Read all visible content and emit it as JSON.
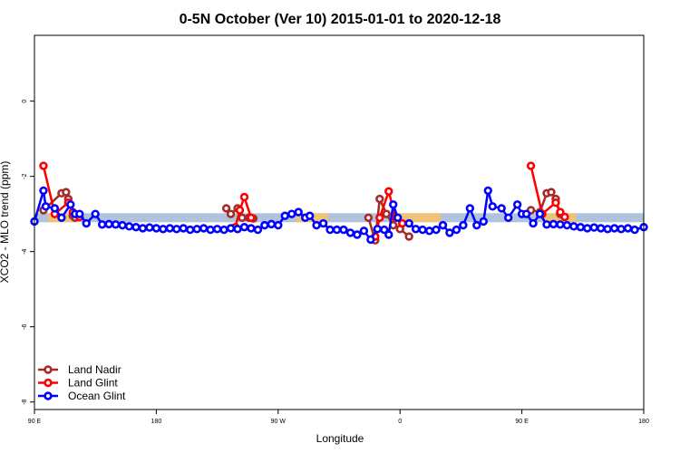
{
  "chart_data": {
    "type": "line",
    "title": "0-5N October (Ver 10)   2015-01-01 to 2020-12-18",
    "xlabel": "Longitude",
    "ylabel": "XCO2 - MLO trend (ppm)",
    "xlim": [
      -90,
      180
    ],
    "ylim": [
      -8.2,
      1.75
    ],
    "x_ticks": [
      {
        "value": -90,
        "label": "90 E"
      },
      {
        "value": -36,
        "label": "180"
      },
      {
        "value": 18,
        "label": "90 W"
      },
      {
        "value": 72,
        "label": "0"
      },
      {
        "value": 126,
        "label": "90 E"
      },
      {
        "value": 180,
        "label": "180"
      }
    ],
    "y_ticks": [
      {
        "value": 0,
        "label": "0"
      },
      {
        "value": -2,
        "label": "-2"
      },
      {
        "value": -4,
        "label": "-4"
      },
      {
        "value": -6,
        "label": "-6"
      },
      {
        "value": -8,
        "label": "-8"
      }
    ],
    "grid": false,
    "legend_position": "bottom-left",
    "bands": [
      {
        "name": "ocean-band",
        "color": "#a8bcd8",
        "y_range": [
          -3.22,
          -2.98
        ],
        "x_range": [
          -90,
          180
        ]
      },
      {
        "name": "land-band",
        "color": "#f5c26b",
        "y_range": [
          -3.22,
          -2.98
        ],
        "x_ranges": [
          [
            -84,
            -70
          ],
          [
            26,
            40
          ],
          [
            68,
            90
          ],
          [
            136,
            150
          ]
        ]
      }
    ],
    "series": [
      {
        "name": "Land Nadir",
        "color": "#a52a2a",
        "segments": [
          [
            [
              -86,
              -2.9
            ],
            [
              -78,
              -2.45
            ],
            [
              -76,
              -2.42
            ],
            [
              -75,
              -2.6
            ],
            [
              -73,
              -3.05
            ],
            [
              -72,
              -3.1
            ]
          ],
          [
            [
              -5,
              -2.85
            ],
            [
              -3,
              -3.0
            ],
            [
              0,
              -2.85
            ],
            [
              2,
              -3.1
            ],
            [
              5,
              -3.1
            ],
            [
              7,
              -3.12
            ]
          ],
          [
            [
              58,
              -3.1
            ],
            [
              61,
              -3.7
            ],
            [
              63,
              -2.6
            ],
            [
              66,
              -3.0
            ],
            [
              69,
              -3.3
            ],
            [
              72,
              -3.4
            ],
            [
              76,
              -3.6
            ]
          ],
          [
            [
              130,
              -2.9
            ],
            [
              134,
              -2.95
            ],
            [
              137,
              -2.45
            ],
            [
              139,
              -2.42
            ],
            [
              141,
              -2.6
            ],
            [
              143,
              -3.0
            ]
          ]
        ]
      },
      {
        "name": "Land Glint",
        "color": "#ff0000",
        "segments": [
          [
            [
              -86,
              -1.72
            ],
            [
              -81,
              -3.0
            ],
            [
              -75,
              -2.7
            ],
            [
              -73,
              -2.95
            ],
            [
              -70,
              -3.08
            ]
          ],
          [
            [
              -1,
              -3.35
            ],
            [
              1,
              -2.9
            ],
            [
              3,
              -2.55
            ],
            [
              6,
              -3.1
            ]
          ],
          [
            [
              61,
              -3.6
            ],
            [
              63,
              -3.1
            ],
            [
              67,
              -2.4
            ],
            [
              70,
              -3.1
            ],
            [
              73,
              -3.25
            ]
          ],
          [
            [
              130,
              -1.72
            ],
            [
              135,
              -3.0
            ],
            [
              141,
              -2.7
            ],
            [
              143,
              -2.95
            ],
            [
              145,
              -3.08
            ]
          ]
        ]
      },
      {
        "name": "Ocean Glint",
        "color": "#0000ff",
        "segments": [
          [
            [
              -90,
              -3.2
            ],
            [
              -86,
              -2.38
            ],
            [
              -85,
              -2.8
            ],
            [
              -81,
              -2.85
            ],
            [
              -78,
              -3.1
            ],
            [
              -74,
              -2.75
            ],
            [
              -72,
              -3.0
            ],
            [
              -70,
              -3.0
            ],
            [
              -67,
              -3.25
            ],
            [
              -63,
              -3.0
            ],
            [
              -60,
              -3.28
            ],
            [
              -57,
              -3.27
            ],
            [
              -54,
              -3.28
            ],
            [
              -51,
              -3.3
            ],
            [
              -48,
              -3.33
            ],
            [
              -45,
              -3.35
            ],
            [
              -42,
              -3.38
            ],
            [
              -39,
              -3.36
            ],
            [
              -36,
              -3.38
            ],
            [
              -33,
              -3.4
            ],
            [
              -30,
              -3.38
            ],
            [
              -27,
              -3.4
            ],
            [
              -24,
              -3.38
            ],
            [
              -21,
              -3.42
            ],
            [
              -18,
              -3.4
            ],
            [
              -15,
              -3.38
            ],
            [
              -12,
              -3.42
            ],
            [
              -9,
              -3.4
            ],
            [
              -6,
              -3.42
            ],
            [
              -3,
              -3.38
            ],
            [
              0,
              -3.4
            ],
            [
              3,
              -3.35
            ],
            [
              6,
              -3.38
            ],
            [
              9,
              -3.42
            ],
            [
              12,
              -3.3
            ],
            [
              15,
              -3.27
            ],
            [
              18,
              -3.3
            ],
            [
              21,
              -3.05
            ],
            [
              24,
              -3.0
            ],
            [
              27,
              -2.95
            ],
            [
              30,
              -3.1
            ],
            [
              32,
              -3.05
            ],
            [
              35,
              -3.3
            ],
            [
              38,
              -3.25
            ],
            [
              41,
              -3.42
            ],
            [
              44,
              -3.42
            ],
            [
              47,
              -3.42
            ],
            [
              50,
              -3.5
            ],
            [
              53,
              -3.55
            ],
            [
              56,
              -3.45
            ],
            [
              59,
              -3.68
            ],
            [
              62,
              -3.4
            ],
            [
              65,
              -3.42
            ],
            [
              67,
              -3.55
            ],
            [
              69,
              -2.75
            ],
            [
              71,
              -3.1
            ]
          ],
          [
            [
              76,
              -3.25
            ],
            [
              79,
              -3.4
            ],
            [
              82,
              -3.42
            ],
            [
              85,
              -3.45
            ],
            [
              88,
              -3.42
            ],
            [
              91,
              -3.3
            ],
            [
              94,
              -3.5
            ],
            [
              97,
              -3.42
            ],
            [
              100,
              -3.3
            ],
            [
              103,
              -2.85
            ],
            [
              106,
              -3.3
            ],
            [
              109,
              -3.2
            ],
            [
              111,
              -2.38
            ],
            [
              113,
              -2.8
            ],
            [
              117,
              -2.85
            ],
            [
              120,
              -3.1
            ],
            [
              124,
              -2.75
            ],
            [
              126,
              -3.0
            ],
            [
              128,
              -3.0
            ],
            [
              131,
              -3.25
            ],
            [
              134,
              -3.0
            ],
            [
              137,
              -3.28
            ],
            [
              140,
              -3.27
            ],
            [
              143,
              -3.28
            ],
            [
              146,
              -3.3
            ],
            [
              149,
              -3.33
            ],
            [
              152,
              -3.35
            ],
            [
              155,
              -3.38
            ],
            [
              158,
              -3.36
            ],
            [
              161,
              -3.38
            ],
            [
              164,
              -3.4
            ],
            [
              167,
              -3.38
            ],
            [
              170,
              -3.4
            ],
            [
              173,
              -3.38
            ],
            [
              176,
              -3.42
            ],
            [
              180,
              -3.35
            ]
          ]
        ]
      }
    ]
  }
}
